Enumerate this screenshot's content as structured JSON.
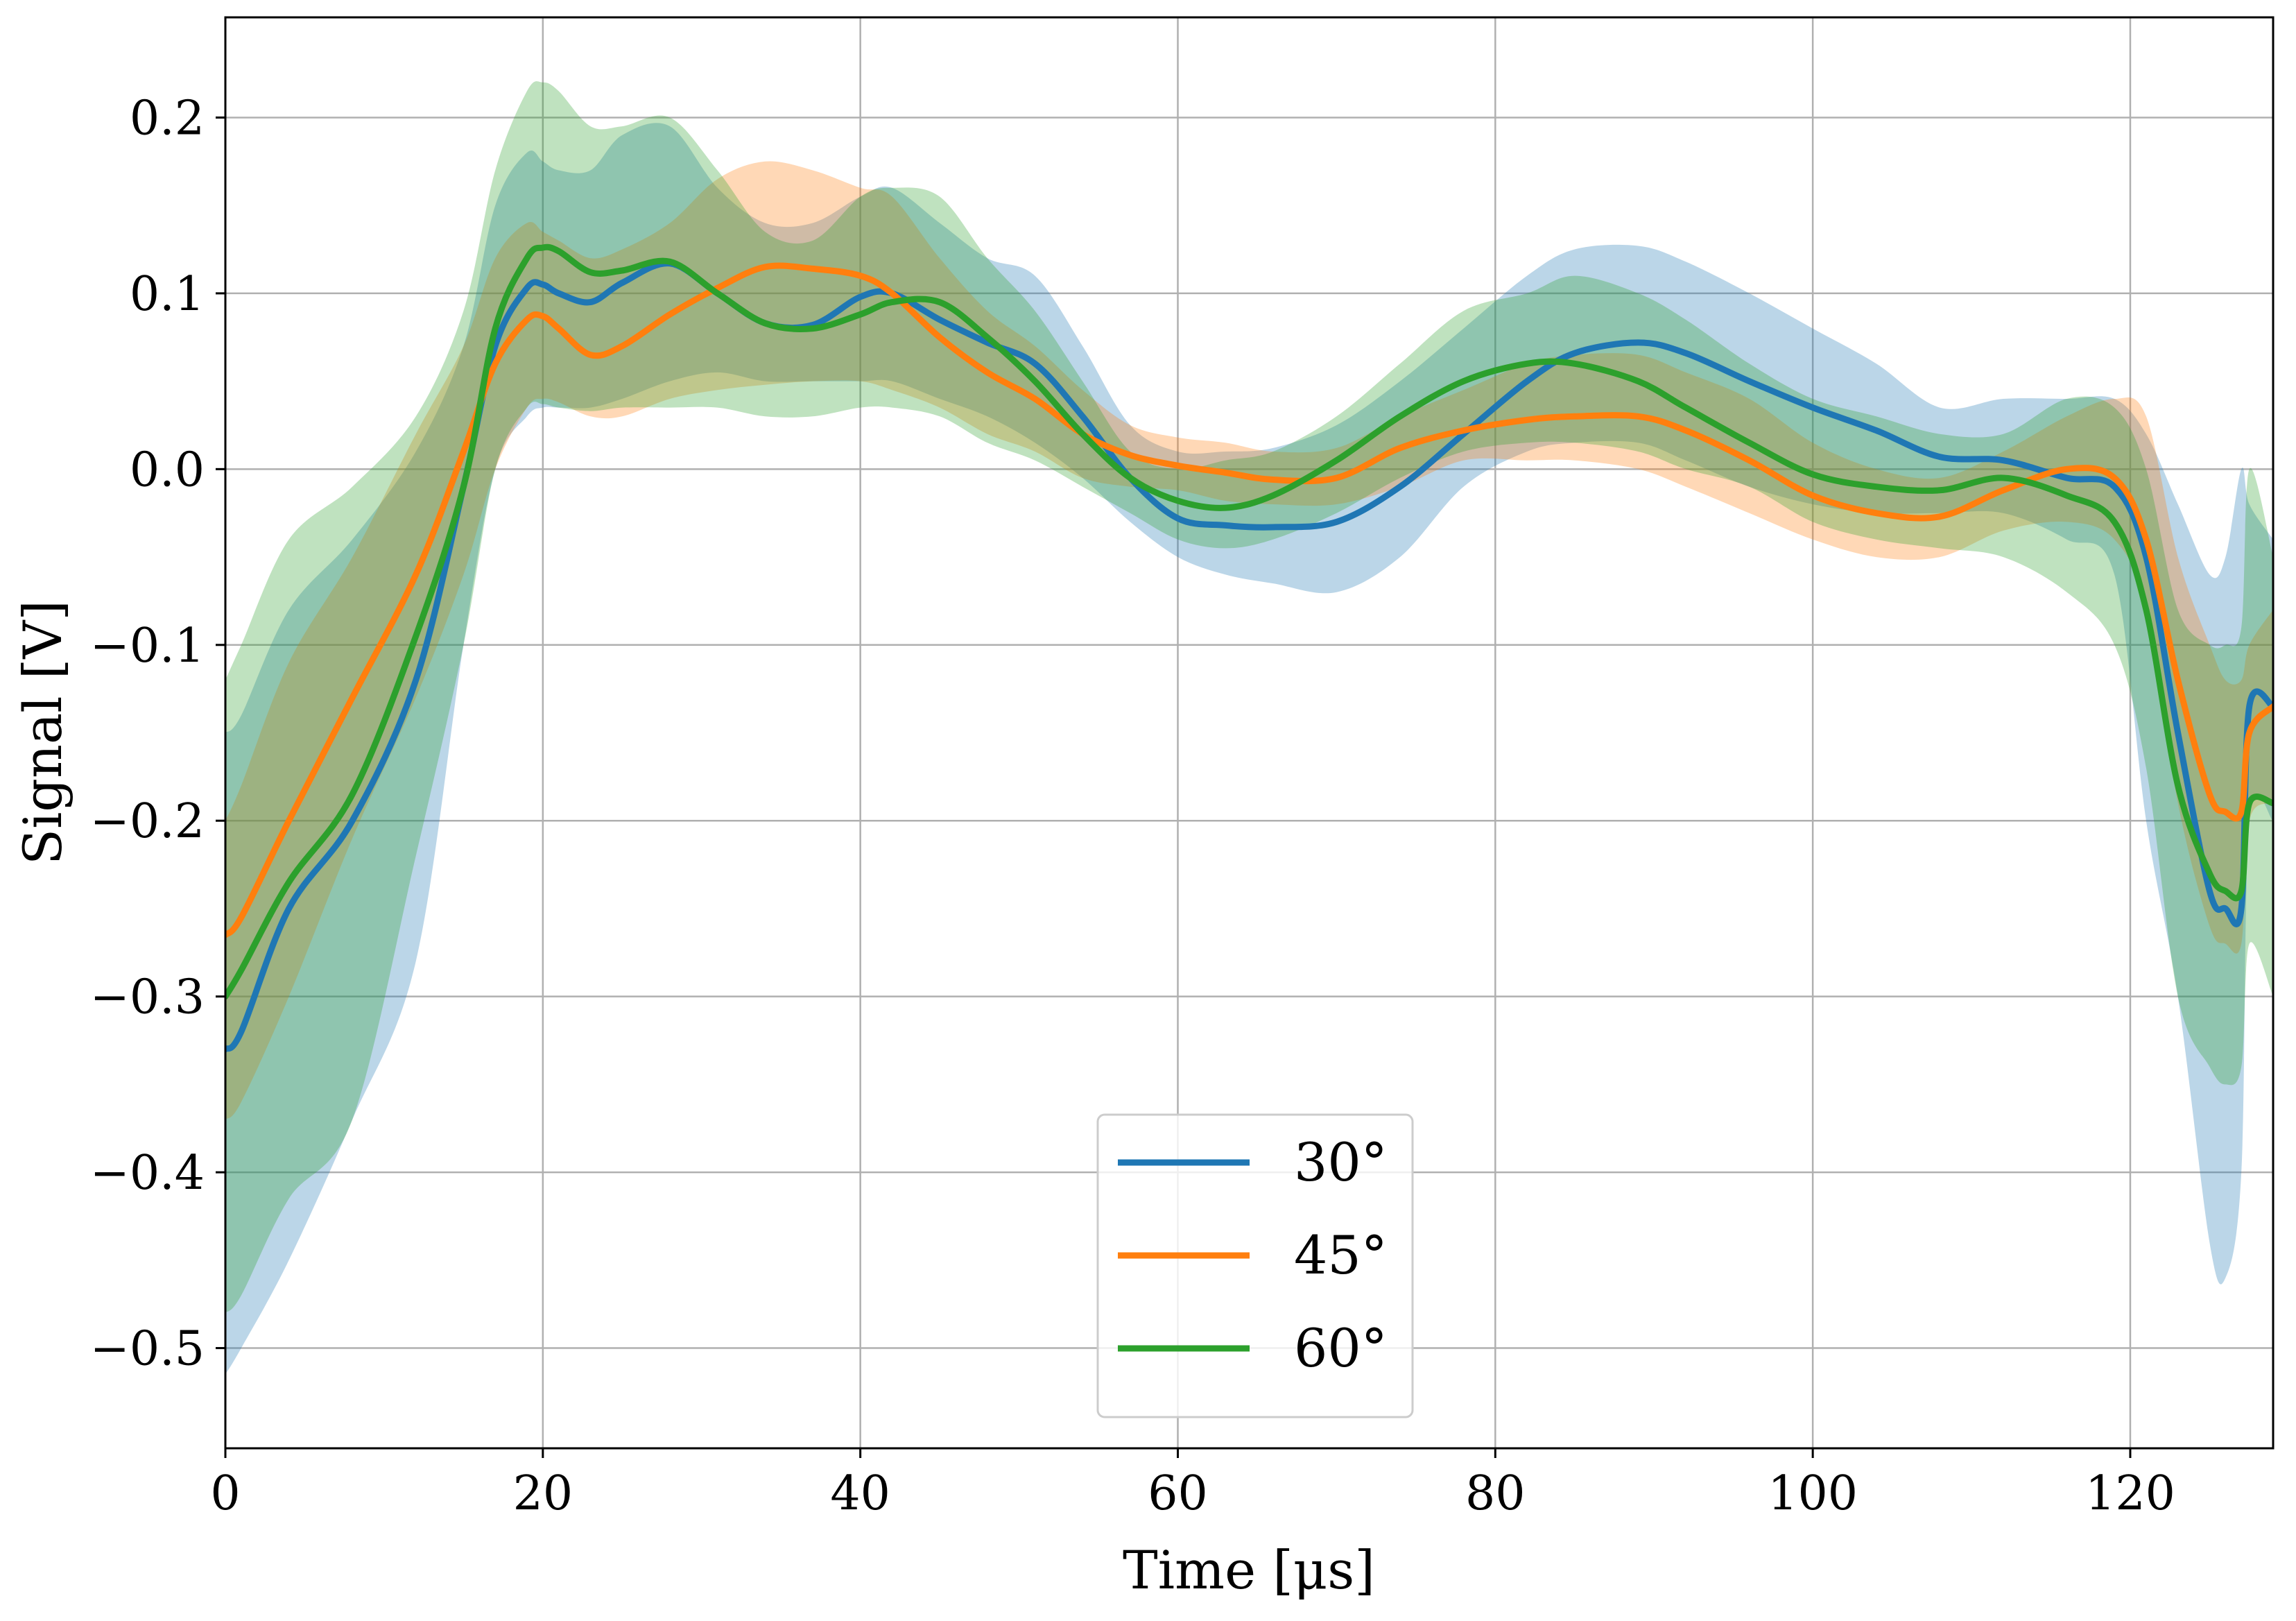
{
  "chart_data": {
    "type": "line",
    "title": "",
    "xlabel": "Time [μs]",
    "ylabel": "Signal [V]",
    "xlim": [
      0,
      129
    ],
    "ylim": [
      -0.557,
      0.257
    ],
    "grid": true,
    "legend_position": "lower-center",
    "x_ticks": [
      0,
      20,
      40,
      60,
      80,
      100,
      120
    ],
    "x_tick_labels": [
      "0",
      "20",
      "40",
      "60",
      "80",
      "100",
      "120"
    ],
    "y_ticks": [
      0.2,
      0.1,
      0.0,
      -0.1,
      -0.2,
      -0.3,
      -0.4,
      -0.5
    ],
    "y_tick_labels": [
      "0.2",
      "0.1",
      "0.0",
      "−0.1",
      "−0.2",
      "−0.3",
      "−0.4",
      "−0.5"
    ],
    "series": [
      {
        "name": "30°",
        "color": "#1f77b4",
        "x": [
          0,
          1,
          4,
          8,
          12,
          15,
          17,
          19,
          20,
          21,
          23,
          25,
          28,
          31,
          34,
          37,
          40,
          42,
          45,
          48,
          51,
          54,
          57,
          60,
          63,
          66,
          70,
          74,
          78,
          82,
          85,
          89,
          92,
          96,
          100,
          104,
          108,
          112,
          116,
          119,
          121,
          123,
          125,
          126,
          127,
          127.5,
          129
        ],
        "y": [
          -0.33,
          -0.32,
          -0.25,
          -0.2,
          -0.12,
          -0.01,
          0.07,
          0.103,
          0.105,
          0.1,
          0.095,
          0.106,
          0.117,
          0.1,
          0.083,
          0.082,
          0.098,
          0.1,
          0.085,
          0.072,
          0.06,
          0.03,
          -0.005,
          -0.028,
          -0.032,
          -0.033,
          -0.03,
          -0.01,
          0.02,
          0.05,
          0.066,
          0.072,
          0.066,
          0.05,
          0.035,
          0.022,
          0.007,
          0.005,
          -0.005,
          -0.01,
          -0.05,
          -0.15,
          -0.24,
          -0.25,
          -0.25,
          -0.135,
          -0.135
        ],
        "band_upper": [
          -0.15,
          -0.14,
          -0.08,
          -0.04,
          0.01,
          0.07,
          0.15,
          0.18,
          0.175,
          0.17,
          0.17,
          0.19,
          0.195,
          0.16,
          0.14,
          0.14,
          0.155,
          0.16,
          0.14,
          0.12,
          0.11,
          0.07,
          0.025,
          0.01,
          0.01,
          0.012,
          0.025,
          0.05,
          0.08,
          0.11,
          0.125,
          0.127,
          0.118,
          0.1,
          0.08,
          0.06,
          0.035,
          0.04,
          0.04,
          0.04,
          0.02,
          -0.02,
          -0.06,
          -0.05,
          0.0,
          -0.02,
          -0.04
        ],
        "band_lower": [
          -0.515,
          -0.5,
          -0.45,
          -0.37,
          -0.28,
          -0.1,
          0.0,
          0.03,
          0.035,
          0.035,
          0.035,
          0.04,
          0.05,
          0.055,
          0.05,
          0.05,
          0.05,
          0.05,
          0.04,
          0.03,
          0.015,
          -0.005,
          -0.03,
          -0.05,
          -0.06,
          -0.065,
          -0.07,
          -0.05,
          -0.01,
          0.01,
          0.015,
          0.015,
          0.005,
          -0.01,
          -0.02,
          -0.025,
          -0.025,
          -0.025,
          -0.04,
          -0.06,
          -0.2,
          -0.3,
          -0.44,
          -0.46,
          -0.4,
          -0.2,
          -0.2
        ]
      },
      {
        "name": "45°",
        "color": "#ff7f0e",
        "x": [
          0,
          1,
          4,
          8,
          12,
          15,
          17,
          19,
          20,
          21,
          23,
          25,
          28,
          31,
          34,
          37,
          40,
          42,
          45,
          48,
          51,
          54,
          57,
          60,
          63,
          66,
          70,
          74,
          78,
          82,
          85,
          89,
          92,
          96,
          100,
          104,
          108,
          112,
          116,
          119,
          121,
          123,
          125,
          126,
          127,
          127.5,
          129
        ],
        "y": [
          -0.265,
          -0.255,
          -0.2,
          -0.13,
          -0.06,
          0.01,
          0.06,
          0.085,
          0.087,
          0.08,
          0.065,
          0.07,
          0.088,
          0.103,
          0.115,
          0.114,
          0.11,
          0.1,
          0.075,
          0.055,
          0.04,
          0.02,
          0.008,
          0.002,
          -0.002,
          -0.006,
          -0.005,
          0.012,
          0.022,
          0.028,
          0.03,
          0.03,
          0.022,
          0.005,
          -0.015,
          -0.025,
          -0.027,
          -0.012,
          0.0,
          -0.005,
          -0.04,
          -0.12,
          -0.185,
          -0.195,
          -0.195,
          -0.15,
          -0.135
        ],
        "band_upper": [
          -0.2,
          -0.18,
          -0.11,
          -0.05,
          0.02,
          0.07,
          0.12,
          0.14,
          0.135,
          0.13,
          0.12,
          0.125,
          0.14,
          0.165,
          0.175,
          0.17,
          0.16,
          0.155,
          0.12,
          0.09,
          0.07,
          0.045,
          0.025,
          0.018,
          0.015,
          0.01,
          0.012,
          0.03,
          0.045,
          0.06,
          0.065,
          0.065,
          0.055,
          0.04,
          0.015,
          0.0,
          -0.005,
          0.01,
          0.03,
          0.04,
          0.03,
          -0.05,
          -0.1,
          -0.12,
          -0.12,
          -0.1,
          -0.08
        ],
        "band_lower": [
          -0.37,
          -0.36,
          -0.3,
          -0.21,
          -0.13,
          -0.06,
          0.0,
          0.035,
          0.04,
          0.038,
          0.03,
          0.03,
          0.04,
          0.045,
          0.048,
          0.05,
          0.05,
          0.045,
          0.035,
          0.02,
          0.01,
          -0.005,
          -0.01,
          -0.012,
          -0.018,
          -0.02,
          -0.02,
          -0.01,
          0.005,
          0.005,
          0.005,
          0.0,
          -0.01,
          -0.025,
          -0.04,
          -0.05,
          -0.05,
          -0.035,
          -0.03,
          -0.04,
          -0.08,
          -0.19,
          -0.26,
          -0.27,
          -0.27,
          -0.2,
          -0.19
        ]
      },
      {
        "name": "60°",
        "color": "#2ca02c",
        "x": [
          0,
          1,
          4,
          8,
          12,
          15,
          17,
          19,
          20,
          21,
          23,
          25,
          28,
          31,
          34,
          37,
          40,
          42,
          45,
          48,
          51,
          54,
          57,
          60,
          63,
          66,
          70,
          74,
          78,
          82,
          85,
          89,
          92,
          96,
          100,
          104,
          108,
          112,
          116,
          119,
          121,
          123,
          125,
          126,
          127,
          127.5,
          129
        ],
        "y": [
          -0.3,
          -0.285,
          -0.235,
          -0.185,
          -0.095,
          -0.01,
          0.08,
          0.12,
          0.126,
          0.124,
          0.112,
          0.113,
          0.118,
          0.1,
          0.083,
          0.08,
          0.088,
          0.095,
          0.095,
          0.075,
          0.05,
          0.02,
          -0.005,
          -0.018,
          -0.022,
          -0.015,
          0.005,
          0.03,
          0.05,
          0.06,
          0.06,
          0.05,
          0.035,
          0.015,
          -0.003,
          -0.01,
          -0.012,
          -0.005,
          -0.015,
          -0.03,
          -0.08,
          -0.18,
          -0.23,
          -0.24,
          -0.24,
          -0.19,
          -0.19
        ],
        "band_upper": [
          -0.12,
          -0.1,
          -0.04,
          -0.01,
          0.03,
          0.09,
          0.17,
          0.215,
          0.22,
          0.215,
          0.195,
          0.195,
          0.2,
          0.17,
          0.135,
          0.13,
          0.155,
          0.16,
          0.155,
          0.12,
          0.09,
          0.05,
          0.01,
          0.0,
          0.005,
          0.01,
          0.03,
          0.06,
          0.09,
          0.1,
          0.11,
          0.1,
          0.085,
          0.06,
          0.04,
          0.03,
          0.02,
          0.02,
          0.04,
          0.035,
          0.0,
          -0.08,
          -0.1,
          -0.1,
          -0.09,
          0.0,
          -0.05
        ],
        "band_lower": [
          -0.48,
          -0.47,
          -0.415,
          -0.37,
          -0.22,
          -0.1,
          0.0,
          0.035,
          0.037,
          0.035,
          0.033,
          0.035,
          0.035,
          0.035,
          0.03,
          0.03,
          0.035,
          0.035,
          0.03,
          0.015,
          0.005,
          -0.01,
          -0.025,
          -0.04,
          -0.045,
          -0.04,
          -0.025,
          -0.005,
          0.01,
          0.015,
          0.015,
          0.01,
          0.0,
          -0.01,
          -0.03,
          -0.04,
          -0.045,
          -0.05,
          -0.07,
          -0.1,
          -0.17,
          -0.3,
          -0.34,
          -0.35,
          -0.34,
          -0.27,
          -0.3
        ]
      }
    ]
  }
}
